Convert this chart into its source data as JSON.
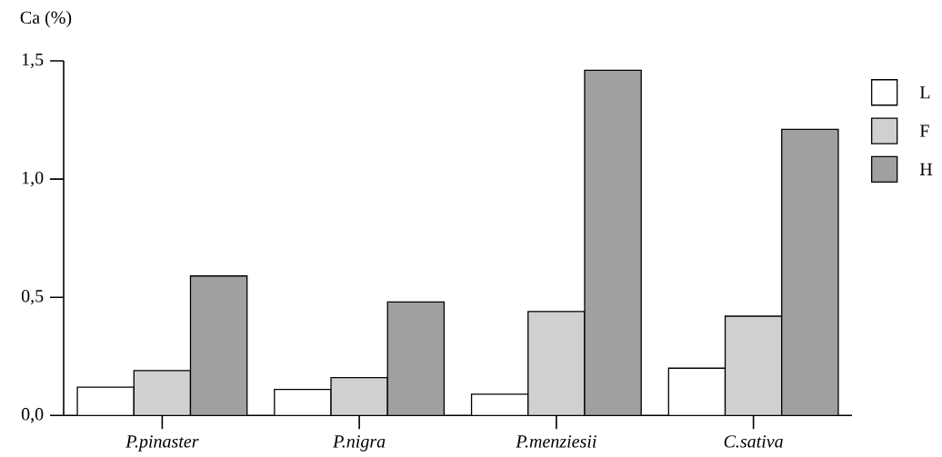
{
  "chart_data": {
    "type": "bar",
    "ylabel": "Ca (%)",
    "categories": [
      "P.pinaster",
      "P.nigra",
      "P.menziesii",
      "C.sativa"
    ],
    "series": [
      {
        "name": "L",
        "color": "#ffffff",
        "values": [
          0.12,
          0.11,
          0.09,
          0.2
        ]
      },
      {
        "name": "F",
        "color": "#d0d0d0",
        "values": [
          0.19,
          0.16,
          0.44,
          0.42
        ]
      },
      {
        "name": "H",
        "color": "#a0a0a0",
        "values": [
          0.59,
          0.48,
          1.46,
          1.21
        ]
      }
    ],
    "ylim": [
      0,
      1.5
    ],
    "yticks": [
      {
        "value": 0,
        "label": "0,0"
      },
      {
        "value": 0.5,
        "label": "0,5"
      },
      {
        "value": 1,
        "label": "1,0"
      },
      {
        "value": 1.5,
        "label": "1,5"
      }
    ],
    "legend": "top right"
  }
}
